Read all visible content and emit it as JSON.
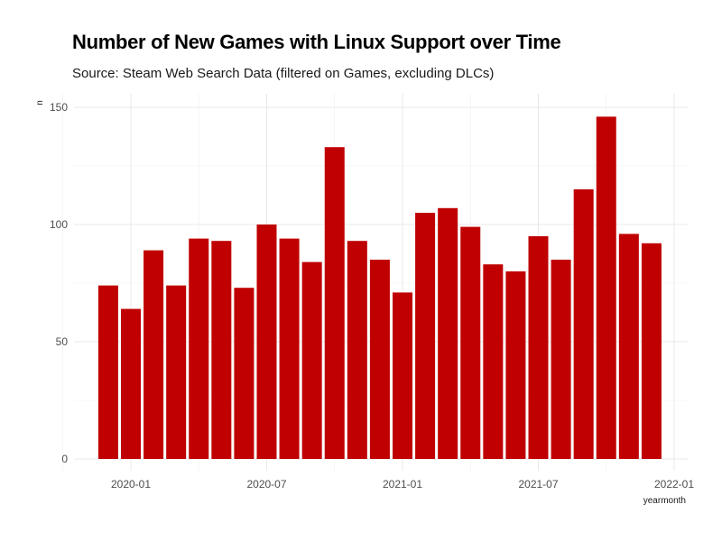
{
  "chart_data": {
    "type": "bar",
    "title": "Number of New Games with Linux Support over Time",
    "subtitle": "Source: Steam Web Search Data (filtered on Games, excluding DLCs)",
    "xlabel": "yearmonth",
    "ylabel": "n",
    "x_ticks": [
      "2020-01",
      "2020-07",
      "2021-01",
      "2021-07",
      "2022-01"
    ],
    "y_ticks": [
      0,
      50,
      100,
      150
    ],
    "ylim": [
      0,
      152
    ],
    "categories": [
      "2019-12",
      "2020-01",
      "2020-02",
      "2020-03",
      "2020-04",
      "2020-05",
      "2020-06",
      "2020-07",
      "2020-08",
      "2020-09",
      "2020-10",
      "2020-11",
      "2020-12",
      "2021-01",
      "2021-02",
      "2021-03",
      "2021-04",
      "2021-05",
      "2021-06",
      "2021-07",
      "2021-08",
      "2021-09",
      "2021-10",
      "2021-11",
      "2021-12"
    ],
    "values": [
      74,
      64,
      89,
      74,
      94,
      93,
      73,
      100,
      94,
      84,
      133,
      93,
      85,
      71,
      105,
      107,
      99,
      83,
      80,
      95,
      85,
      115,
      146,
      96,
      92
    ],
    "bar_color": "#c00000",
    "grid": true
  }
}
